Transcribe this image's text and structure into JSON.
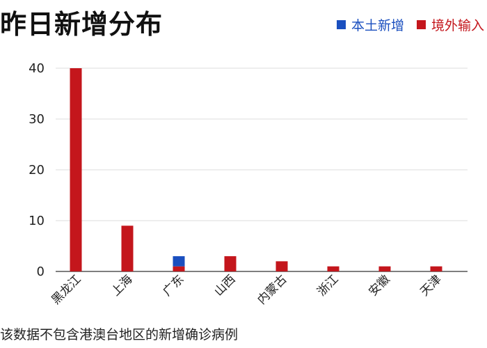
{
  "chart_data": {
    "type": "bar",
    "title": "昨日新增分布",
    "categories": [
      "黑龙江",
      "上海",
      "广东",
      "山西",
      "内蒙古",
      "浙江",
      "安徽",
      "天津"
    ],
    "series": [
      {
        "name": "本土新增",
        "color": "#1a4fbf",
        "values": [
          0,
          0,
          2,
          0,
          0,
          0,
          0,
          0
        ]
      },
      {
        "name": "境外输入",
        "color": "#c4161c",
        "values": [
          40,
          9,
          1,
          3,
          2,
          1,
          1,
          1
        ]
      }
    ],
    "stacked": true,
    "ylim": [
      0,
      40
    ],
    "yticks": [
      "0",
      "10",
      "20",
      "30",
      "40"
    ],
    "grid": true,
    "legend": "top-right",
    "footnote": "该数据不包含港澳台地区的新增确诊病例"
  }
}
